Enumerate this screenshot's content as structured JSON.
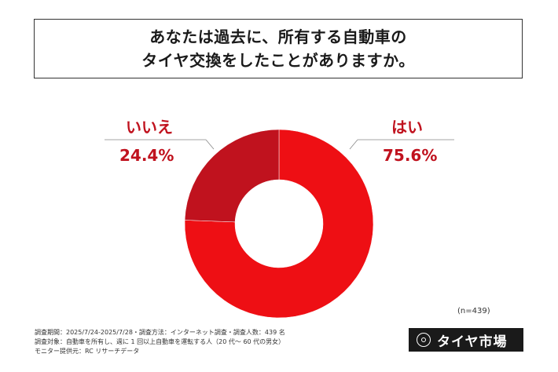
{
  "title": {
    "line1": "あなたは過去に、所有する自動車の",
    "line2": "タイヤ交換をしたことがありますか。"
  },
  "chart_data": {
    "type": "pie",
    "variant": "donut",
    "categories": [
      "はい",
      "いいえ"
    ],
    "values": [
      75.6,
      24.4
    ],
    "value_labels": [
      "75.6%",
      "24.4%"
    ],
    "colors": [
      "#ee0f14",
      "#c0121e"
    ],
    "note": "(n=439)"
  },
  "footer": {
    "line1": "調査期間：2025/7/24-2025/7/28・調査方法：インターネット調査・調査人数：439 名",
    "line2": "調査対象：自動車を所有し、週に 1 回以上自動車を運転する人（20 代～ 60 代の男女）",
    "line3": "モニター提供元：RC リサーチデータ"
  },
  "logo": {
    "text": "タイヤ市場"
  }
}
